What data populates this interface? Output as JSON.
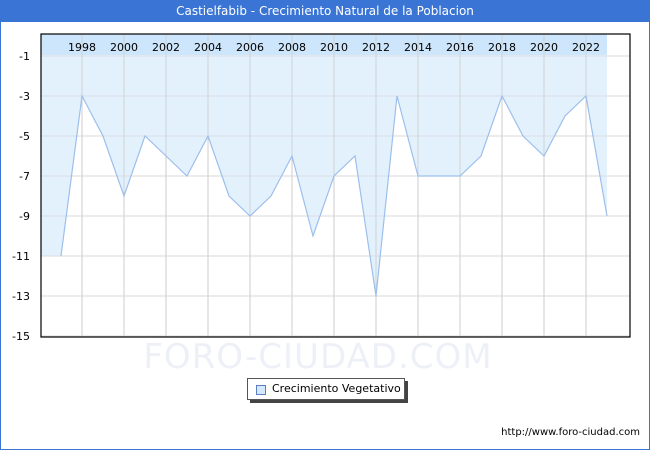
{
  "header": {
    "title": "Castielfabib - Crecimiento Natural de la Poblacion"
  },
  "legend": {
    "label": "Crecimiento Vegetativo"
  },
  "watermark": "FORO-CIUDAD.COM",
  "footer": {
    "url": "http://www.foro-ciudad.com"
  },
  "colors": {
    "title_bar": "#3a74d4",
    "fill": "#e3f1fd",
    "header_band": "#cde6fb",
    "line": "#9dbfec",
    "grid": "#d9d9d9"
  },
  "chart_data": {
    "type": "area",
    "title": "Castielfabib - Crecimiento Natural de la Poblacion",
    "xlabel": "",
    "ylabel": "",
    "x": [
      1997,
      1998,
      1999,
      2000,
      2001,
      2002,
      2003,
      2004,
      2005,
      2006,
      2007,
      2008,
      2009,
      2010,
      2011,
      2012,
      2013,
      2014,
      2015,
      2016,
      2017,
      2018,
      2019,
      2020,
      2021,
      2022,
      2023
    ],
    "series": [
      {
        "name": "Crecimiento Vegetativo",
        "values": [
          -11,
          -3,
          -5,
          -8,
          -5,
          -6,
          -7,
          -5,
          -8,
          -9,
          -8,
          -6,
          -10,
          -7,
          -6,
          -13,
          -3,
          -7,
          -7,
          -7,
          -6,
          -3,
          -5,
          -6,
          -4,
          -3,
          -9
        ]
      }
    ],
    "x_ticks": [
      "1998",
      "2000",
      "2002",
      "2004",
      "2006",
      "2008",
      "2010",
      "2012",
      "2014",
      "2016",
      "2018",
      "2020",
      "2022"
    ],
    "y_ticks": [
      "-1",
      "-3",
      "-5",
      "-7",
      "-9",
      "-11",
      "-13",
      "-15"
    ],
    "ylim": [
      -15,
      0
    ],
    "grid": true,
    "legend_position": "bottom-center"
  }
}
